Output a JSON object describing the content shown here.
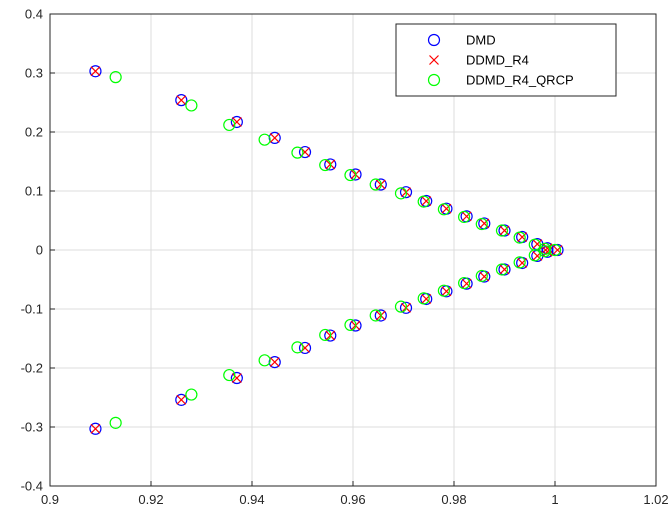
{
  "chart_data": {
    "type": "scatter",
    "title": "",
    "xlabel": "",
    "ylabel": "",
    "xlim": [
      0.9,
      1.02
    ],
    "ylim": [
      -0.4,
      0.4
    ],
    "xticks": [
      "0.9",
      "0.92",
      "0.94",
      "0.96",
      "0.98",
      "1",
      "1.02"
    ],
    "yticks": [
      "-0.4",
      "-0.3",
      "-0.2",
      "-0.1",
      "0",
      "0.1",
      "0.2",
      "0.3",
      "0.4"
    ],
    "grid": true,
    "legend_position": "top-right",
    "series": [
      {
        "name": "DMD",
        "marker": "circle",
        "color": "#0000ff",
        "points": [
          [
            0.909,
            0.303
          ],
          [
            0.909,
            -0.303
          ],
          [
            0.926,
            0.254
          ],
          [
            0.926,
            -0.254
          ],
          [
            0.937,
            0.217
          ],
          [
            0.937,
            -0.217
          ],
          [
            0.9445,
            0.19
          ],
          [
            0.9445,
            -0.19
          ],
          [
            0.9505,
            0.166
          ],
          [
            0.9505,
            -0.166
          ],
          [
            0.9555,
            0.145
          ],
          [
            0.9555,
            -0.145
          ],
          [
            0.9605,
            0.128
          ],
          [
            0.9605,
            -0.128
          ],
          [
            0.9655,
            0.111
          ],
          [
            0.9655,
            -0.111
          ],
          [
            0.9705,
            0.098
          ],
          [
            0.9705,
            -0.098
          ],
          [
            0.9745,
            0.083
          ],
          [
            0.9745,
            -0.083
          ],
          [
            0.9785,
            0.07
          ],
          [
            0.9785,
            -0.07
          ],
          [
            0.9825,
            0.057
          ],
          [
            0.9825,
            -0.057
          ],
          [
            0.986,
            0.045
          ],
          [
            0.986,
            -0.045
          ],
          [
            0.99,
            0.033
          ],
          [
            0.99,
            -0.033
          ],
          [
            0.9935,
            0.022
          ],
          [
            0.9935,
            -0.022
          ],
          [
            0.9965,
            0.01
          ],
          [
            0.9965,
            -0.01
          ],
          [
            0.9985,
            0.003
          ],
          [
            0.9985,
            -0.003
          ],
          [
            1.0005,
            0.0
          ]
        ]
      },
      {
        "name": "DDMD_R4",
        "marker": "x",
        "color": "#ff0000",
        "points": [
          [
            0.909,
            0.303
          ],
          [
            0.909,
            -0.303
          ],
          [
            0.926,
            0.254
          ],
          [
            0.926,
            -0.254
          ],
          [
            0.937,
            0.217
          ],
          [
            0.937,
            -0.217
          ],
          [
            0.9445,
            0.19
          ],
          [
            0.9445,
            -0.19
          ],
          [
            0.9505,
            0.166
          ],
          [
            0.9505,
            -0.166
          ],
          [
            0.9555,
            0.145
          ],
          [
            0.9555,
            -0.145
          ],
          [
            0.9605,
            0.128
          ],
          [
            0.9605,
            -0.128
          ],
          [
            0.9655,
            0.111
          ],
          [
            0.9655,
            -0.111
          ],
          [
            0.9705,
            0.098
          ],
          [
            0.9705,
            -0.098
          ],
          [
            0.9745,
            0.083
          ],
          [
            0.9745,
            -0.083
          ],
          [
            0.9785,
            0.07
          ],
          [
            0.9785,
            -0.07
          ],
          [
            0.9825,
            0.057
          ],
          [
            0.9825,
            -0.057
          ],
          [
            0.986,
            0.045
          ],
          [
            0.986,
            -0.045
          ],
          [
            0.99,
            0.033
          ],
          [
            0.99,
            -0.033
          ],
          [
            0.9935,
            0.022
          ],
          [
            0.9935,
            -0.022
          ],
          [
            0.9965,
            0.01
          ],
          [
            0.9965,
            -0.01
          ],
          [
            0.9985,
            0.003
          ],
          [
            0.9985,
            -0.003
          ],
          [
            1.0005,
            0.0
          ]
        ]
      },
      {
        "name": "DDMD_R4_QRCP",
        "marker": "circle",
        "color": "#00ff00",
        "points": [
          [
            0.913,
            0.293
          ],
          [
            0.913,
            -0.293
          ],
          [
            0.928,
            0.245
          ],
          [
            0.928,
            -0.245
          ],
          [
            0.9355,
            0.212
          ],
          [
            0.9355,
            -0.212
          ],
          [
            0.9425,
            0.187
          ],
          [
            0.9425,
            -0.187
          ],
          [
            0.949,
            0.165
          ],
          [
            0.949,
            -0.165
          ],
          [
            0.9545,
            0.144
          ],
          [
            0.9545,
            -0.144
          ],
          [
            0.9595,
            0.127
          ],
          [
            0.9595,
            -0.127
          ],
          [
            0.9645,
            0.111
          ],
          [
            0.9645,
            -0.111
          ],
          [
            0.9695,
            0.096
          ],
          [
            0.9695,
            -0.096
          ],
          [
            0.974,
            0.082
          ],
          [
            0.974,
            -0.082
          ],
          [
            0.978,
            0.069
          ],
          [
            0.978,
            -0.069
          ],
          [
            0.982,
            0.056
          ],
          [
            0.982,
            -0.056
          ],
          [
            0.9855,
            0.044
          ],
          [
            0.9855,
            -0.044
          ],
          [
            0.9895,
            0.033
          ],
          [
            0.9895,
            -0.033
          ],
          [
            0.993,
            0.021
          ],
          [
            0.993,
            -0.021
          ],
          [
            0.996,
            0.009
          ],
          [
            0.996,
            -0.009
          ],
          [
            0.998,
            0.002
          ],
          [
            0.998,
            -0.002
          ],
          [
            1.0,
            0.0
          ]
        ]
      }
    ]
  }
}
